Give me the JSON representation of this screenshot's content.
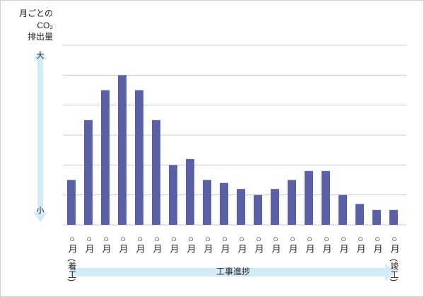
{
  "chart_data": {
    "type": "bar",
    "y_label": [
      "月ごとの",
      "CO₂",
      "排出量"
    ],
    "y_arrow_top": "大",
    "y_arrow_bottom": "小",
    "x_label": "工事進捗",
    "start_note": "(着工)",
    "end_note": "(竣工)",
    "categories": [
      "○月",
      "○月",
      "○月",
      "○月",
      "○月",
      "○月",
      "○月",
      "○月",
      "○月",
      "○月",
      "○月",
      "○月",
      "○月",
      "○月",
      "○月",
      "○月",
      "○月",
      "○月",
      "○月",
      "○月"
    ],
    "values": [
      1.5,
      3.5,
      4.5,
      5.0,
      4.5,
      3.5,
      2.0,
      2.2,
      1.5,
      1.4,
      1.2,
      1.0,
      1.2,
      1.5,
      1.8,
      1.8,
      1.0,
      0.7,
      0.5,
      0.5
    ],
    "color": "#5b61a8",
    "ylim": [
      0,
      6
    ],
    "yticks": [
      0,
      1,
      2,
      3,
      4,
      5,
      6
    ],
    "grid": true
  }
}
